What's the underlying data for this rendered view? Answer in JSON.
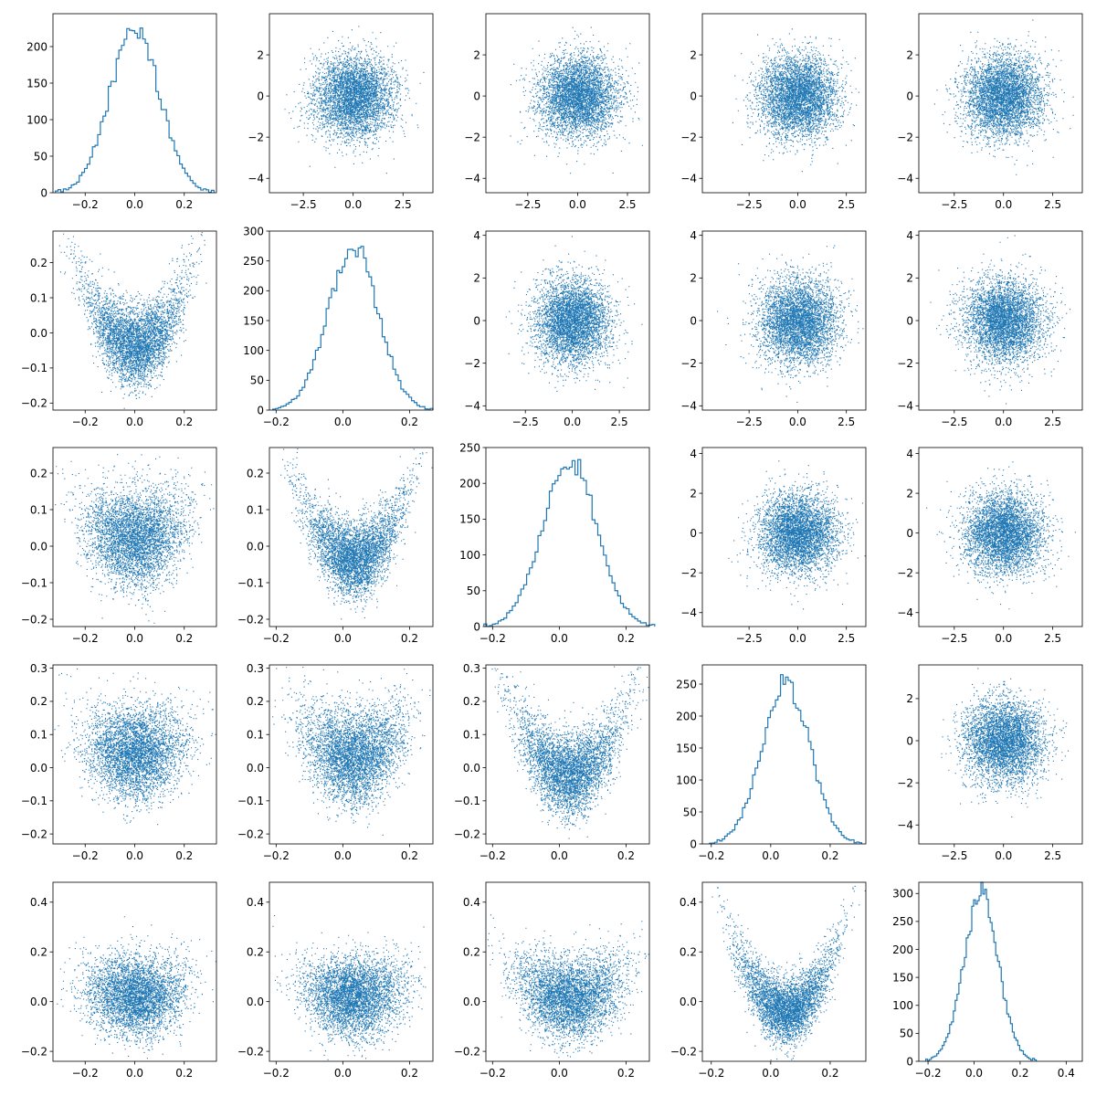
{
  "chart_data": {
    "type": "scatter",
    "layout": "5x5 pair plot grid: histograms on diagonal, scatter plots off-diagonal",
    "color": "#1f77b4",
    "axes_frame": true,
    "grid": false,
    "panels": [
      {
        "row": 0,
        "col": 0,
        "kind": "histogram",
        "xlim": [
          -0.33,
          0.33
        ],
        "ylim": [
          0,
          245
        ],
        "xticks": [
          -0.2,
          0.0,
          0.2
        ],
        "yticks": [
          0,
          50,
          100,
          150,
          200
        ],
        "xtick_labels": [
          "−0.2",
          "0.0",
          "0.2"
        ],
        "ytick_labels": [
          "0",
          "50",
          "100",
          "150",
          "200"
        ],
        "hist": {
          "mean": 0.0,
          "sd": 0.1,
          "peak": 225,
          "bins": 60
        }
      },
      {
        "row": 0,
        "col": 1,
        "kind": "scatter",
        "xlim": [
          -4.2,
          4.0
        ],
        "ylim": [
          -4.7,
          4.0
        ],
        "xticks": [
          -2.5,
          0.0,
          2.5
        ],
        "yticks": [
          -4,
          -2,
          0,
          2
        ],
        "xtick_labels": [
          "−2.5",
          "0.0",
          "2.5"
        ],
        "ytick_labels": [
          "−4",
          "−2",
          "0",
          "2"
        ],
        "scatter": {
          "mean_x": 0.0,
          "sd_x": 1.0,
          "mean_y": 0.0,
          "sd_y": 1.0,
          "curve": 0
        }
      },
      {
        "row": 0,
        "col": 2,
        "kind": "scatter",
        "xlim": [
          -4.6,
          3.6
        ],
        "ylim": [
          -4.7,
          4.0
        ],
        "xticks": [
          -2.5,
          0.0,
          2.5
        ],
        "yticks": [
          -4,
          -2,
          0,
          2
        ],
        "xtick_labels": [
          "−2.5",
          "0.0",
          "2.5"
        ],
        "ytick_labels": [
          "−4",
          "−2",
          "0",
          "2"
        ],
        "scatter": {
          "mean_x": 0.0,
          "sd_x": 1.0,
          "mean_y": 0.0,
          "sd_y": 1.0,
          "curve": 0
        }
      },
      {
        "row": 0,
        "col": 3,
        "kind": "scatter",
        "xlim": [
          -4.9,
          3.5
        ],
        "ylim": [
          -4.7,
          4.0
        ],
        "xticks": [
          -2.5,
          0.0,
          2.5
        ],
        "yticks": [
          -4,
          -2,
          0,
          2
        ],
        "xtick_labels": [
          "−2.5",
          "0.0",
          "2.5"
        ],
        "ytick_labels": [
          "−4",
          "−2",
          "0",
          "2"
        ],
        "scatter": {
          "mean_x": 0.0,
          "sd_x": 1.0,
          "mean_y": 0.0,
          "sd_y": 1.0,
          "curve": 0
        }
      },
      {
        "row": 0,
        "col": 4,
        "kind": "scatter",
        "xlim": [
          -4.3,
          4.0
        ],
        "ylim": [
          -4.7,
          4.0
        ],
        "xticks": [
          -2.5,
          0.0,
          2.5
        ],
        "yticks": [
          -4,
          -2,
          0,
          2
        ],
        "xtick_labels": [
          "−2.5",
          "0.0",
          "2.5"
        ],
        "ytick_labels": [
          "−4",
          "−2",
          "0",
          "2"
        ],
        "scatter": {
          "mean_x": 0.0,
          "sd_x": 1.0,
          "mean_y": 0.0,
          "sd_y": 1.0,
          "curve": 0
        }
      },
      {
        "row": 1,
        "col": 0,
        "kind": "scatter",
        "xlim": [
          -0.33,
          0.33
        ],
        "ylim": [
          -0.22,
          0.29
        ],
        "xticks": [
          -0.2,
          0.0,
          0.2
        ],
        "yticks": [
          -0.2,
          -0.1,
          0.0,
          0.1,
          0.2
        ],
        "xtick_labels": [
          "−0.2",
          "0.0",
          "0.2"
        ],
        "ytick_labels": [
          "−0.2",
          "−0.1",
          "0.0",
          "0.1",
          "0.2"
        ],
        "scatter": {
          "mean_x": 0.0,
          "sd_x": 0.1,
          "mean_y": 0.0,
          "sd_y": 0.055,
          "curve": 2.0
        }
      },
      {
        "row": 1,
        "col": 1,
        "kind": "histogram",
        "xlim": [
          -0.22,
          0.27
        ],
        "ylim": [
          0,
          300
        ],
        "xticks": [
          -0.2,
          0.0,
          0.2
        ],
        "yticks": [
          0,
          50,
          100,
          150,
          200,
          250,
          300
        ],
        "xtick_labels": [
          "−0.2",
          "0.0",
          "0.2"
        ],
        "ytick_labels": [
          "0",
          "50",
          "100",
          "150",
          "200",
          "250",
          "300"
        ],
        "hist": {
          "mean": 0.03,
          "sd": 0.075,
          "peak": 275,
          "bins": 60
        }
      },
      {
        "row": 1,
        "col": 2,
        "kind": "scatter",
        "xlim": [
          -4.6,
          4.1
        ],
        "ylim": [
          -4.2,
          4.2
        ],
        "xticks": [
          -2.5,
          0.0,
          2.5
        ],
        "yticks": [
          -4,
          -2,
          0,
          2,
          4
        ],
        "xtick_labels": [
          "−2.5",
          "0.0",
          "2.5"
        ],
        "ytick_labels": [
          "−4",
          "−2",
          "0",
          "2",
          "4"
        ],
        "scatter": {
          "mean_x": 0.0,
          "sd_x": 1.0,
          "mean_y": 0.0,
          "sd_y": 1.0,
          "curve": 0
        }
      },
      {
        "row": 1,
        "col": 3,
        "kind": "scatter",
        "xlim": [
          -4.9,
          3.5
        ],
        "ylim": [
          -4.2,
          4.2
        ],
        "xticks": [
          -2.5,
          0.0,
          2.5
        ],
        "yticks": [
          -4,
          -2,
          0,
          2,
          4
        ],
        "xtick_labels": [
          "−2.5",
          "0.0",
          "2.5"
        ],
        "ytick_labels": [
          "−4",
          "−2",
          "0",
          "2",
          "4"
        ],
        "scatter": {
          "mean_x": 0.0,
          "sd_x": 1.0,
          "mean_y": 0.0,
          "sd_y": 1.0,
          "curve": 0
        }
      },
      {
        "row": 1,
        "col": 4,
        "kind": "scatter",
        "xlim": [
          -4.3,
          4.0
        ],
        "ylim": [
          -4.2,
          4.2
        ],
        "xticks": [
          -2.5,
          0.0,
          2.5
        ],
        "yticks": [
          -4,
          -2,
          0,
          2,
          4
        ],
        "xtick_labels": [
          "−2.5",
          "0.0",
          "2.5"
        ],
        "ytick_labels": [
          "−4",
          "−2",
          "0",
          "2",
          "4"
        ],
        "scatter": {
          "mean_x": 0.0,
          "sd_x": 1.0,
          "mean_y": 0.0,
          "sd_y": 1.0,
          "curve": 0
        }
      },
      {
        "row": 2,
        "col": 0,
        "kind": "scatter",
        "xlim": [
          -0.33,
          0.33
        ],
        "ylim": [
          -0.22,
          0.27
        ],
        "xticks": [
          -0.2,
          0.0,
          0.2
        ],
        "yticks": [
          -0.2,
          -0.1,
          0.0,
          0.1,
          0.2
        ],
        "xtick_labels": [
          "−0.2",
          "0.0",
          "0.2"
        ],
        "ytick_labels": [
          "−0.2",
          "−0.1",
          "0.0",
          "0.1",
          "0.2"
        ],
        "scatter": {
          "mean_x": 0.0,
          "sd_x": 0.1,
          "mean_y": 0.03,
          "sd_y": 0.065,
          "curve": 0.5
        }
      },
      {
        "row": 2,
        "col": 1,
        "kind": "scatter",
        "xlim": [
          -0.22,
          0.27
        ],
        "ylim": [
          -0.22,
          0.27
        ],
        "xticks": [
          -0.2,
          0.0,
          0.2
        ],
        "yticks": [
          -0.2,
          -0.1,
          0.0,
          0.1,
          0.2
        ],
        "xtick_labels": [
          "−0.2",
          "0.0",
          "0.2"
        ],
        "ytick_labels": [
          "−0.2",
          "−0.1",
          "0.0",
          "0.1",
          "0.2"
        ],
        "scatter": {
          "mean_x": 0.03,
          "sd_x": 0.075,
          "mean_y": 0.0,
          "sd_y": 0.05,
          "curve": 2.2
        }
      },
      {
        "row": 2,
        "col": 2,
        "kind": "histogram",
        "xlim": [
          -0.22,
          0.27
        ],
        "ylim": [
          0,
          250
        ],
        "xticks": [
          -0.2,
          0.0,
          0.2
        ],
        "yticks": [
          0,
          50,
          100,
          150,
          200,
          250
        ],
        "xtick_labels": [
          "−0.2",
          "0.0",
          "0.2"
        ],
        "ytick_labels": [
          "0",
          "50",
          "100",
          "150",
          "200",
          "250"
        ],
        "hist": {
          "mean": 0.03,
          "sd": 0.08,
          "peak": 235,
          "bins": 60
        }
      },
      {
        "row": 2,
        "col": 3,
        "kind": "scatter",
        "xlim": [
          -4.9,
          3.5
        ],
        "ylim": [
          -4.7,
          4.3
        ],
        "xticks": [
          -2.5,
          0.0,
          2.5
        ],
        "yticks": [
          -4,
          -2,
          0,
          2,
          4
        ],
        "xtick_labels": [
          "−2.5",
          "0.0",
          "2.5"
        ],
        "ytick_labels": [
          "−4",
          "−2",
          "0",
          "2",
          "4"
        ],
        "scatter": {
          "mean_x": 0.0,
          "sd_x": 1.0,
          "mean_y": 0.0,
          "sd_y": 1.0,
          "curve": 0
        }
      },
      {
        "row": 2,
        "col": 4,
        "kind": "scatter",
        "xlim": [
          -4.3,
          4.0
        ],
        "ylim": [
          -4.7,
          4.3
        ],
        "xticks": [
          -2.5,
          0.0,
          2.5
        ],
        "yticks": [
          -4,
          -2,
          0,
          2,
          4
        ],
        "xtick_labels": [
          "−2.5",
          "0.0",
          "2.5"
        ],
        "ytick_labels": [
          "−4",
          "−2",
          "0",
          "2",
          "4"
        ],
        "scatter": {
          "mean_x": 0.0,
          "sd_x": 1.0,
          "mean_y": 0.0,
          "sd_y": 1.0,
          "curve": 0
        }
      },
      {
        "row": 3,
        "col": 0,
        "kind": "scatter",
        "xlim": [
          -0.33,
          0.33
        ],
        "ylim": [
          -0.23,
          0.31
        ],
        "xticks": [
          -0.2,
          0.0,
          0.2
        ],
        "yticks": [
          -0.2,
          -0.1,
          0.0,
          0.1,
          0.2,
          0.3
        ],
        "xtick_labels": [
          "−0.2",
          "0.0",
          "0.2"
        ],
        "ytick_labels": [
          "−0.2",
          "−0.1",
          "0.0",
          "0.1",
          "0.2",
          "0.3"
        ],
        "scatter": {
          "mean_x": 0.0,
          "sd_x": 0.1,
          "mean_y": 0.05,
          "sd_y": 0.07,
          "curve": 0.3
        }
      },
      {
        "row": 3,
        "col": 1,
        "kind": "scatter",
        "xlim": [
          -0.22,
          0.27
        ],
        "ylim": [
          -0.23,
          0.31
        ],
        "xticks": [
          -0.2,
          0.0,
          0.2
        ],
        "yticks": [
          -0.2,
          -0.1,
          0.0,
          0.1,
          0.2,
          0.3
        ],
        "xtick_labels": [
          "−0.2",
          "0.0",
          "0.2"
        ],
        "ytick_labels": [
          "−0.2",
          "−0.1",
          "0.0",
          "0.1",
          "0.2",
          "0.3"
        ],
        "scatter": {
          "mean_x": 0.03,
          "sd_x": 0.075,
          "mean_y": 0.05,
          "sd_y": 0.07,
          "curve": 0.8
        }
      },
      {
        "row": 3,
        "col": 2,
        "kind": "scatter",
        "xlim": [
          -0.22,
          0.27
        ],
        "ylim": [
          -0.23,
          0.31
        ],
        "xticks": [
          -0.2,
          0.0,
          0.2
        ],
        "yticks": [
          -0.2,
          -0.1,
          0.0,
          0.1,
          0.2,
          0.3
        ],
        "xtick_labels": [
          "−0.2",
          "0.0",
          "0.2"
        ],
        "ytick_labels": [
          "−0.2",
          "−0.1",
          "0.0",
          "0.1",
          "0.2",
          "0.3"
        ],
        "scatter": {
          "mean_x": 0.03,
          "sd_x": 0.08,
          "mean_y": 0.02,
          "sd_y": 0.06,
          "curve": 2.0
        }
      },
      {
        "row": 3,
        "col": 3,
        "kind": "histogram",
        "xlim": [
          -0.23,
          0.32
        ],
        "ylim": [
          0,
          280
        ],
        "xticks": [
          -0.2,
          0.0,
          0.2
        ],
        "yticks": [
          0,
          50,
          100,
          150,
          200,
          250
        ],
        "xtick_labels": [
          "−0.2",
          "0.0",
          "0.2"
        ],
        "ytick_labels": [
          "0",
          "50",
          "100",
          "150",
          "200",
          "250"
        ],
        "hist": {
          "mean": 0.05,
          "sd": 0.08,
          "peak": 255,
          "bins": 60
        }
      },
      {
        "row": 3,
        "col": 4,
        "kind": "scatter",
        "xlim": [
          -4.3,
          4.0
        ],
        "ylim": [
          -4.9,
          3.6
        ],
        "xticks": [
          -2.5,
          0.0,
          2.5
        ],
        "yticks": [
          -4,
          -2,
          0,
          2
        ],
        "xtick_labels": [
          "−2.5",
          "0.0",
          "2.5"
        ],
        "ytick_labels": [
          "−4",
          "−2",
          "0",
          "2"
        ],
        "scatter": {
          "mean_x": 0.0,
          "sd_x": 1.0,
          "mean_y": 0.0,
          "sd_y": 1.0,
          "curve": 0
        }
      },
      {
        "row": 4,
        "col": 0,
        "kind": "scatter",
        "xlim": [
          -0.33,
          0.33
        ],
        "ylim": [
          -0.24,
          0.48
        ],
        "xticks": [
          -0.2,
          0.0,
          0.2
        ],
        "yticks": [
          -0.2,
          0.0,
          0.2,
          0.4
        ],
        "xtick_labels": [
          "−0.2",
          "0.0",
          "0.2"
        ],
        "ytick_labels": [
          "−0.2",
          "0.0",
          "0.2",
          "0.4"
        ],
        "scatter": {
          "mean_x": 0.0,
          "sd_x": 0.1,
          "mean_y": 0.03,
          "sd_y": 0.08,
          "curve": 0.3
        }
      },
      {
        "row": 4,
        "col": 1,
        "kind": "scatter",
        "xlim": [
          -0.22,
          0.27
        ],
        "ylim": [
          -0.24,
          0.48
        ],
        "xticks": [
          -0.2,
          0.0,
          0.2
        ],
        "yticks": [
          -0.2,
          0.0,
          0.2,
          0.4
        ],
        "xtick_labels": [
          "−0.2",
          "0.0",
          "0.2"
        ],
        "ytick_labels": [
          "−0.2",
          "0.0",
          "0.2",
          "0.4"
        ],
        "scatter": {
          "mean_x": 0.03,
          "sd_x": 0.075,
          "mean_y": 0.03,
          "sd_y": 0.08,
          "curve": 0.4
        }
      },
      {
        "row": 4,
        "col": 2,
        "kind": "scatter",
        "xlim": [
          -0.22,
          0.27
        ],
        "ylim": [
          -0.24,
          0.48
        ],
        "xticks": [
          -0.2,
          0.0,
          0.2
        ],
        "yticks": [
          -0.2,
          0.0,
          0.2,
          0.4
        ],
        "xtick_labels": [
          "−0.2",
          "0.0",
          "0.2"
        ],
        "ytick_labels": [
          "−0.2",
          "0.0",
          "0.2",
          "0.4"
        ],
        "scatter": {
          "mean_x": 0.03,
          "sd_x": 0.08,
          "mean_y": 0.03,
          "sd_y": 0.08,
          "curve": 0.8
        }
      },
      {
        "row": 4,
        "col": 3,
        "kind": "scatter",
        "xlim": [
          -0.23,
          0.32
        ],
        "ylim": [
          -0.24,
          0.48
        ],
        "xticks": [
          -0.2,
          0.0,
          0.2
        ],
        "yticks": [
          -0.2,
          0.0,
          0.2,
          0.4
        ],
        "xtick_labels": [
          "−0.2",
          "0.0",
          "0.2"
        ],
        "ytick_labels": [
          "−0.2",
          "0.0",
          "0.2",
          "0.4"
        ],
        "scatter": {
          "mean_x": 0.05,
          "sd_x": 0.08,
          "mean_y": 0.02,
          "sd_y": 0.065,
          "curve": 2.5
        }
      },
      {
        "row": 4,
        "col": 4,
        "kind": "histogram",
        "xlim": [
          -0.24,
          0.47
        ],
        "ylim": [
          0,
          320
        ],
        "xticks": [
          -0.2,
          0.0,
          0.2,
          0.4
        ],
        "yticks": [
          0,
          50,
          100,
          150,
          200,
          250,
          300
        ],
        "xtick_labels": [
          "−0.2",
          "0.0",
          "0.2",
          "0.4"
        ],
        "ytick_labels": [
          "0",
          "50",
          "100",
          "150",
          "200",
          "250",
          "300"
        ],
        "hist": {
          "mean": 0.03,
          "sd": 0.075,
          "peak": 300,
          "bins": 60
        }
      }
    ]
  }
}
